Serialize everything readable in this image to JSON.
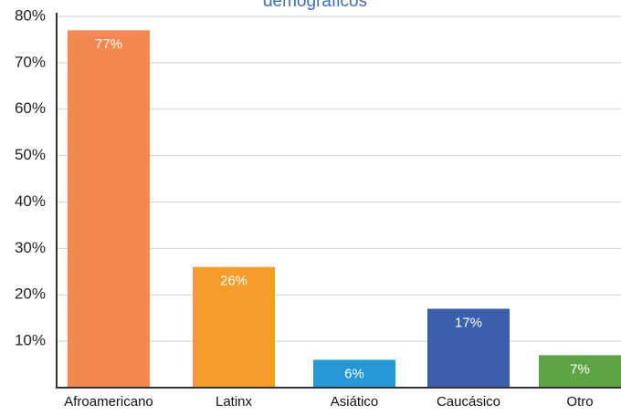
{
  "chart_data": {
    "type": "bar",
    "title": "demográficos",
    "categories": [
      "Afroamericano",
      "Latinx",
      "Asiático",
      "Caucásico",
      "Otro"
    ],
    "values": [
      77,
      26,
      6,
      17,
      7
    ],
    "value_labels": [
      "77%",
      "26%",
      "6%",
      "17%",
      "7%"
    ],
    "colors": [
      "#f5884e",
      "#f59c2a",
      "#2597d5",
      "#3a5fad",
      "#5da544"
    ],
    "ylim": [
      0,
      80
    ],
    "yticks": [
      {
        "value": 10,
        "label": "10%"
      },
      {
        "value": 20,
        "label": "20%"
      },
      {
        "value": 30,
        "label": "30%"
      },
      {
        "value": 40,
        "label": "40%"
      },
      {
        "value": 50,
        "label": "50%"
      },
      {
        "value": 60,
        "label": "60%"
      },
      {
        "value": 70,
        "label": "70%"
      },
      {
        "value": 80,
        "label": "80%"
      }
    ],
    "grid": true
  }
}
